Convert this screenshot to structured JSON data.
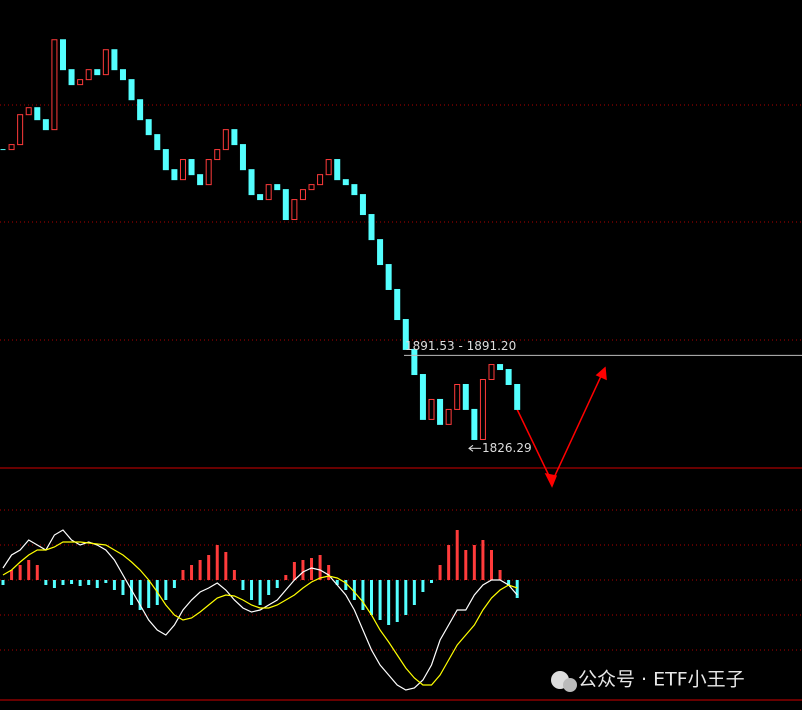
{
  "chart_data": {
    "type": "candlestick",
    "up_color": "#ff3b3b",
    "down_color": "#54ffff",
    "ylim": [
      1783,
      2141
    ],
    "close": [
      2036.0,
      2039.5,
      2060.5,
      2065.4,
      2057.0,
      2050.0,
      2113.1,
      2092.1,
      2081.6,
      2085.1,
      2092.1,
      2088.6,
      2106.1,
      2092.1,
      2085.1,
      2071.0,
      2057.0,
      2046.5,
      2036.0,
      2021.9,
      2014.9,
      2029.0,
      2018.4,
      2011.4,
      2029.0,
      2036.0,
      2050.0,
      2039.5,
      2021.9,
      2004.4,
      2000.9,
      2011.4,
      2007.9,
      1986.9,
      2000.9,
      2007.9,
      2011.4,
      2018.4,
      2029.0,
      2014.9,
      2011.4,
      2004.4,
      1990.4,
      1972.8,
      1955.3,
      1937.8,
      1916.7,
      1895.7,
      1878.1,
      1846.6,
      1860.6,
      1843.1,
      1853.6,
      1871.1,
      1853.6,
      1832.5,
      1874.6,
      1885.1,
      1881.6,
      1871.1,
      1853.6
    ],
    "annotations": [
      {
        "value": 1891.53,
        "label": "1891.53 - 1891.20"
      },
      {
        "value": 1826.29,
        "label": "1826.29"
      }
    ],
    "macd": {
      "ylim": [
        -115,
        60
      ],
      "histogram": [
        -5,
        10,
        15,
        20,
        15,
        -5,
        -8,
        -5,
        -4,
        -6,
        -5,
        -8,
        -3,
        -10,
        -15,
        -25,
        -30,
        -28,
        -25,
        -20,
        -8,
        10,
        15,
        20,
        25,
        35,
        28,
        10,
        -10,
        -20,
        -25,
        -15,
        -8,
        5,
        18,
        20,
        22,
        25,
        15,
        -5,
        -10,
        -20,
        -30,
        -35,
        -40,
        -45,
        -42,
        -35,
        -25,
        -12,
        -3,
        15,
        35,
        50,
        30,
        35,
        40,
        30,
        10,
        -5,
        -18
      ],
      "series": [
        {
          "color": "#ffffff",
          "values": [
            12,
            25,
            30,
            40,
            35,
            30,
            45,
            50,
            40,
            35,
            38,
            35,
            30,
            20,
            5,
            -10,
            -25,
            -40,
            -50,
            -55,
            -45,
            -30,
            -20,
            -12,
            -8,
            -3,
            -10,
            -20,
            -28,
            -32,
            -30,
            -25,
            -20,
            -10,
            0,
            8,
            12,
            10,
            5,
            -5,
            -15,
            -30,
            -50,
            -70,
            -85,
            -95,
            -105,
            -110,
            -108,
            -100,
            -85,
            -60,
            -45,
            -30,
            -30,
            -15,
            -5,
            0,
            0,
            -5,
            -15
          ]
        },
        {
          "color": "#ffff00",
          "values": [
            5,
            10,
            18,
            25,
            30,
            30,
            33,
            38,
            38,
            38,
            37,
            36,
            35,
            30,
            25,
            18,
            10,
            0,
            -12,
            -25,
            -35,
            -40,
            -38,
            -32,
            -25,
            -18,
            -15,
            -16,
            -20,
            -25,
            -28,
            -28,
            -25,
            -20,
            -15,
            -8,
            -2,
            2,
            4,
            2,
            -3,
            -12,
            -22,
            -35,
            -50,
            -62,
            -75,
            -88,
            -98,
            -105,
            -105,
            -95,
            -80,
            -65,
            -55,
            -45,
            -30,
            -18,
            -10,
            -5,
            -8
          ]
        }
      ]
    }
  },
  "watermark": "公众号 · ETF小王子"
}
